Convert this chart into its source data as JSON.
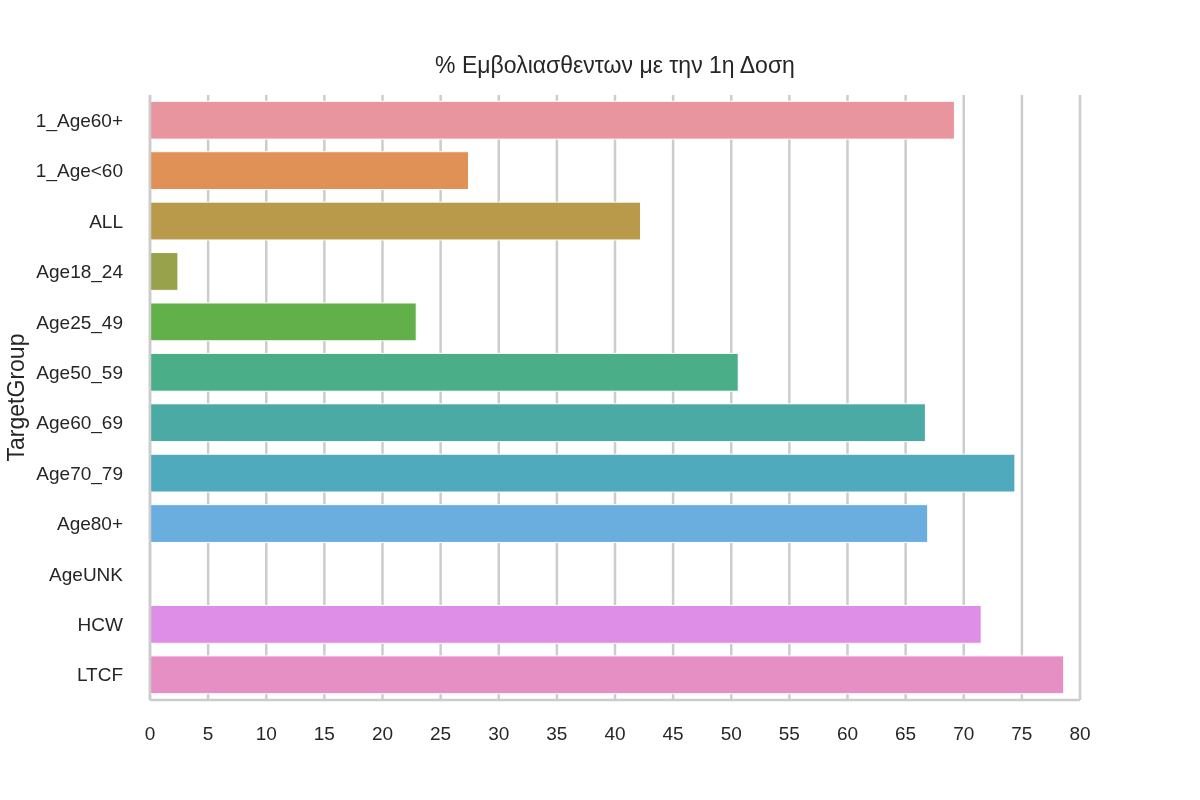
{
  "chart_data": {
    "type": "bar",
    "orientation": "horizontal",
    "title": "% Εμβολιασθεντων με την 1η Δοση",
    "ylabel": "TargetGroup",
    "categories": [
      "1_Age60+",
      "1_Age<60",
      "ALL",
      "Age18_24",
      "Age25_49",
      "Age50_59",
      "Age60_69",
      "Age70_79",
      "Age80+",
      "AgeUNK",
      "HCW",
      "LTCF"
    ],
    "values": [
      69.2,
      27.4,
      42.2,
      2.4,
      22.9,
      50.6,
      66.7,
      74.4,
      66.9,
      null,
      71.5,
      78.6
    ],
    "colors": [
      "#e8959f",
      "#e09155",
      "#b89a4a",
      "#98a24a",
      "#62b04a",
      "#4aae88",
      "#4caaa5",
      "#50aabe",
      "#6aaee0",
      null,
      "#df8ee8",
      "#e68fc4"
    ],
    "xlim": [
      0,
      80
    ],
    "xticks": [
      0,
      5,
      10,
      15,
      20,
      25,
      30,
      35,
      40,
      45,
      50,
      55,
      60,
      65,
      70,
      75,
      80
    ],
    "grid": "x"
  }
}
